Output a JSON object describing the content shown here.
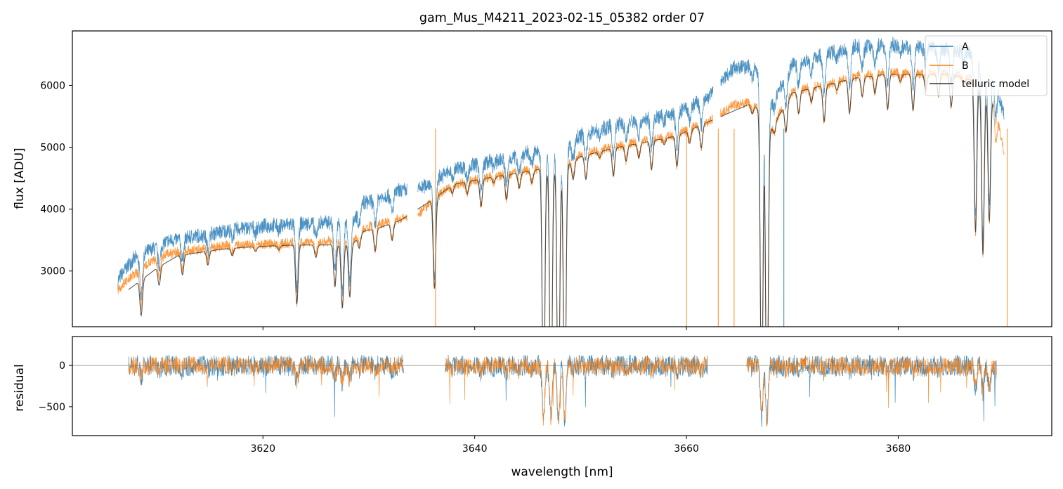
{
  "chart_data": [
    {
      "type": "line",
      "panel": "flux",
      "title": "gam_Mus_M4211_2023-02-15_05382  order 07",
      "xlabel": "",
      "ylabel": "flux [ADU]",
      "xlim": [
        3602,
        3694.5
      ],
      "ylim": [
        2100,
        6880
      ],
      "yticks": [
        3000,
        4000,
        5000,
        6000
      ],
      "xticks": [
        3620,
        3640,
        3660,
        3680
      ],
      "legend": {
        "position": "top-right",
        "entries": [
          "A",
          "B",
          "telluric model"
        ]
      },
      "colors": {
        "A": "#1f77b4",
        "B": "#ff7f0e",
        "telluric model": "#333333"
      },
      "series": [
        {
          "name": "A",
          "x": [
            3606.3,
            3607.5,
            3609.0,
            3611.0,
            3613.0,
            3615.0,
            3617.5,
            3620.0,
            3623.0,
            3626.0,
            3628.5,
            3629.5,
            3631.0,
            3633.0,
            3634.5,
            3636.0,
            3638.0,
            3641.0,
            3644.0,
            3646.0,
            3648.5,
            3650.0,
            3653.0,
            3656.0,
            3659.0,
            3661.0,
            3662.0,
            3664.5,
            3666.0,
            3667.0,
            3668.0,
            3670.0,
            3673.0,
            3676.0,
            3679.0,
            3682.0,
            3685.0,
            3687.0,
            3689.0,
            3690.0
          ],
          "values": [
            2850,
            3150,
            3300,
            3480,
            3540,
            3600,
            3680,
            3720,
            3760,
            3780,
            3820,
            4100,
            4180,
            4300,
            4300,
            4450,
            4650,
            4750,
            4850,
            4950,
            4950,
            5200,
            5350,
            5450,
            5550,
            5720,
            5800,
            6300,
            6300,
            6200,
            5700,
            6350,
            6500,
            6620,
            6650,
            6620,
            6580,
            6500,
            6200,
            5500
          ]
        },
        {
          "name": "B",
          "x": [
            3606.3,
            3607.5,
            3609.0,
            3611.0,
            3613.0,
            3615.0,
            3617.5,
            3620.0,
            3623.0,
            3626.0,
            3628.5,
            3629.5,
            3631.0,
            3633.0,
            3634.5,
            3636.0,
            3638.0,
            3641.0,
            3644.0,
            3646.0,
            3648.5,
            3650.0,
            3653.0,
            3656.0,
            3659.0,
            3661.0,
            3662.0,
            3664.5,
            3666.0,
            3667.0,
            3668.0,
            3670.0,
            3673.0,
            3676.0,
            3679.0,
            3682.0,
            3685.0,
            3687.0,
            3689.0,
            3690.0
          ],
          "values": [
            2700,
            2900,
            3100,
            3280,
            3330,
            3380,
            3420,
            3430,
            3450,
            3480,
            3500,
            3680,
            3760,
            3850,
            3880,
            4150,
            4400,
            4500,
            4600,
            4650,
            4700,
            4880,
            5000,
            5100,
            5200,
            5350,
            5400,
            5700,
            5720,
            5600,
            5300,
            5900,
            6000,
            6150,
            6200,
            6200,
            6200,
            6100,
            5800,
            4900
          ]
        },
        {
          "name": "telluric model",
          "x": [
            3607.3,
            3608.5,
            3610.0,
            3612.0,
            3614.0,
            3616.0,
            3618.0,
            3620.0,
            3623.0,
            3626.0,
            3628.5,
            3629.5,
            3631.0,
            3633.0,
            3636.0,
            3638.0,
            3641.0,
            3644.0,
            3646.0,
            3648.5,
            3650.0,
            3653.0,
            3656.0,
            3659.0,
            3661.0,
            3666.0,
            3667.0,
            3668.0,
            3670.0,
            3673.0,
            3676.0,
            3679.0,
            3682.0,
            3685.0,
            3687.0,
            3689.0
          ],
          "values": [
            2700,
            2850,
            3050,
            3250,
            3300,
            3350,
            3380,
            3400,
            3420,
            3420,
            3440,
            3640,
            3700,
            3820,
            4150,
            4400,
            4500,
            4580,
            4640,
            4680,
            4850,
            4980,
            5080,
            5180,
            5330,
            5700,
            5600,
            5300,
            5880,
            6000,
            6120,
            6180,
            6180,
            6180,
            6080,
            5780
          ]
        }
      ]
    },
    {
      "type": "line",
      "panel": "residual",
      "xlabel": "wavelength [nm]",
      "ylabel": "residual",
      "xlim": [
        3602,
        3694.5
      ],
      "ylim": [
        -850,
        350
      ],
      "yticks": [
        -500,
        0
      ],
      "xticks": [
        3620,
        3640,
        3660,
        3680
      ],
      "segments_x": [
        [
          3607.3,
          3633.3
        ],
        [
          3637.2,
          3662.0
        ],
        [
          3665.7,
          3689.3
        ]
      ],
      "series": [
        {
          "name": "A",
          "typical_range": [
            -300,
            250
          ]
        },
        {
          "name": "B",
          "typical_range": [
            -300,
            250
          ]
        }
      ],
      "reference_line_y": 0
    }
  ]
}
